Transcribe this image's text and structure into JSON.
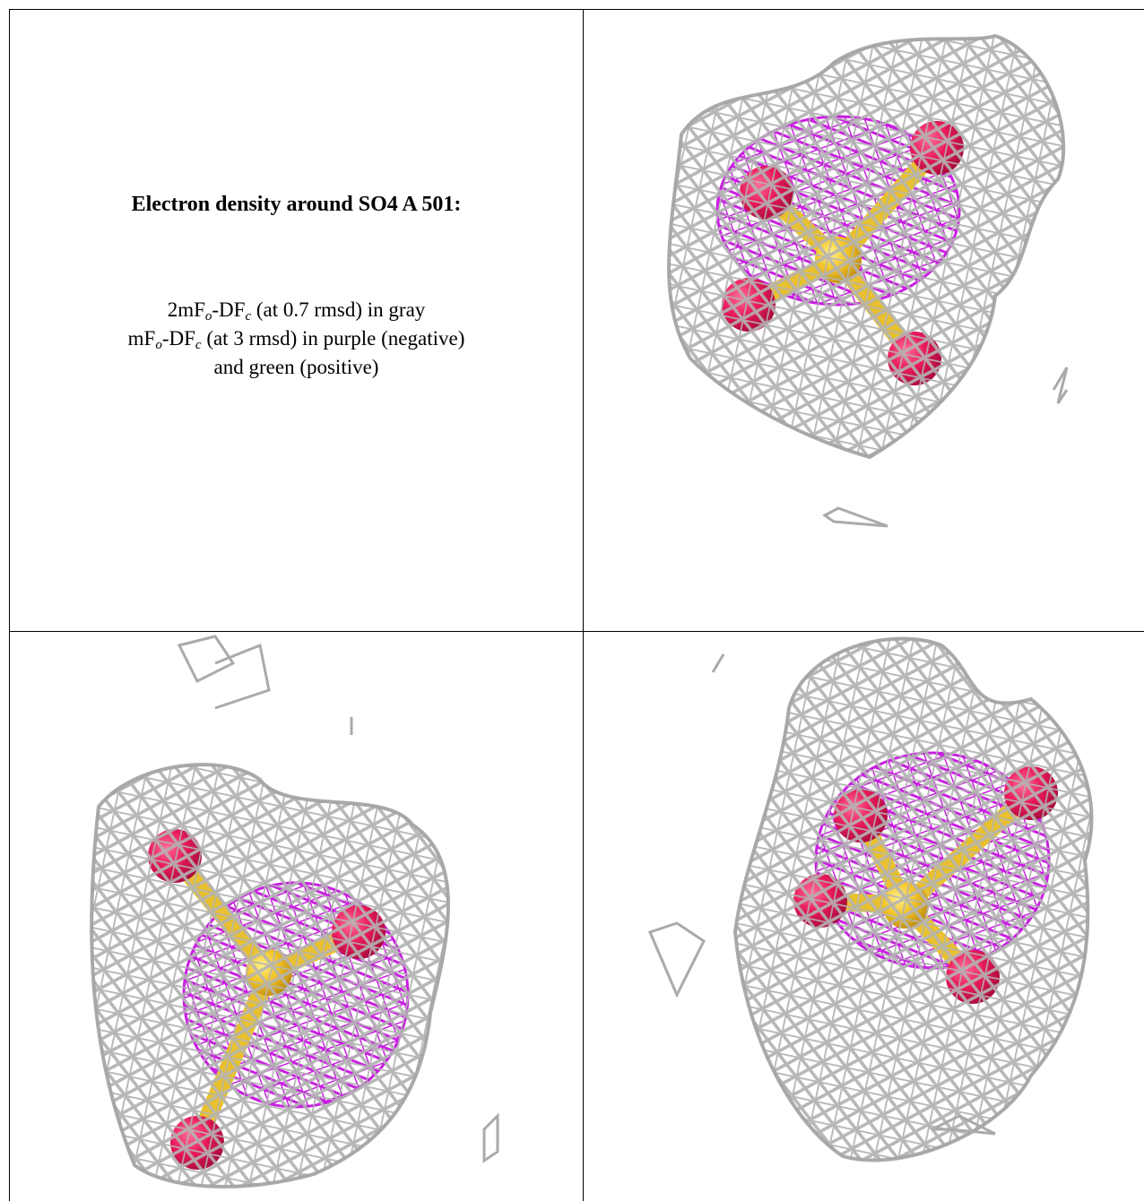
{
  "caption": {
    "title": "Electron density around SO4 A 501:",
    "lines": [
      [
        "2mF",
        "o",
        "-DF",
        "c",
        " (at 0.7 rmsd) in gray"
      ],
      [
        "mF",
        "o",
        "-DF",
        "c",
        " (at 3 rmsd) in purple (negative)"
      ],
      [
        "and green (positive)"
      ]
    ]
  }
}
